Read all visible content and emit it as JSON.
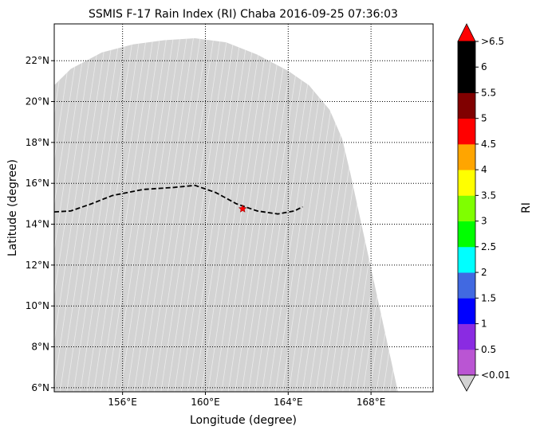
{
  "chart_data": {
    "type": "map",
    "title": "SSMIS F-17 Rain Index (RI) Chaba 2016-09-25 07:36:03",
    "xlabel": "Longitude (degree)",
    "ylabel": "Latitude (degree)",
    "xlim": [
      152.7,
      171.0
    ],
    "ylim": [
      5.8,
      23.8
    ],
    "x_ticks": [
      {
        "value": 156,
        "label": "156°E"
      },
      {
        "value": 160,
        "label": "160°E"
      },
      {
        "value": 164,
        "label": "164°E"
      },
      {
        "value": 168,
        "label": "168°E"
      }
    ],
    "y_ticks": [
      {
        "value": 6,
        "label": "6°N"
      },
      {
        "value": 8,
        "label": "8°N"
      },
      {
        "value": 10,
        "label": "10°N"
      },
      {
        "value": 12,
        "label": "12°N"
      },
      {
        "value": 14,
        "label": "14°N"
      },
      {
        "value": 16,
        "label": "16°N"
      },
      {
        "value": 18,
        "label": "18°N"
      },
      {
        "value": 20,
        "label": "20°N"
      },
      {
        "value": 22,
        "label": "22°N"
      }
    ],
    "gridlines": true,
    "swath": {
      "color": "#d3d3d3",
      "stripe_count": 80,
      "boundary": [
        [
          152.7,
          20.8
        ],
        [
          153.5,
          21.6
        ],
        [
          155.0,
          22.4
        ],
        [
          156.5,
          22.8
        ],
        [
          158.0,
          23.0
        ],
        [
          159.5,
          23.1
        ],
        [
          161.0,
          22.9
        ],
        [
          162.5,
          22.3
        ],
        [
          164.0,
          21.5
        ],
        [
          165.0,
          20.8
        ],
        [
          166.0,
          19.6
        ],
        [
          166.6,
          18.2
        ],
        [
          167.0,
          16.5
        ],
        [
          169.3,
          5.8
        ],
        [
          152.7,
          5.8
        ]
      ]
    },
    "track": {
      "style": "dashed",
      "color": "#000000",
      "points": [
        [
          152.7,
          14.6
        ],
        [
          153.5,
          14.65
        ],
        [
          154.5,
          15.0
        ],
        [
          155.5,
          15.4
        ],
        [
          157.0,
          15.7
        ],
        [
          158.5,
          15.8
        ],
        [
          159.5,
          15.9
        ],
        [
          160.5,
          15.55
        ],
        [
          161.5,
          15.0
        ],
        [
          162.5,
          14.65
        ],
        [
          163.5,
          14.5
        ],
        [
          164.3,
          14.65
        ],
        [
          164.7,
          14.85
        ]
      ]
    },
    "storm_center": {
      "lon": 161.8,
      "lat": 14.75,
      "color": "#ff0000",
      "marker": "star"
    },
    "colorbar": {
      "label": "RI",
      "ticks": [
        "<0.01",
        "0.5",
        "1",
        "1.5",
        "2",
        "2.5",
        "3",
        "3.5",
        "4",
        "4.5",
        "5",
        "5.5",
        "6",
        ">6.5"
      ],
      "colors": [
        "#ba55d3",
        "#8a2be2",
        "#0000ff",
        "#4169e1",
        "#00ffff",
        "#00ff00",
        "#7fff00",
        "#ffff00",
        "#ffa500",
        "#ff0000",
        "#800000",
        "#000000",
        "#000000"
      ],
      "extend_min_color": "#d3d3d3",
      "extend_max_color": "#ff0000"
    }
  }
}
